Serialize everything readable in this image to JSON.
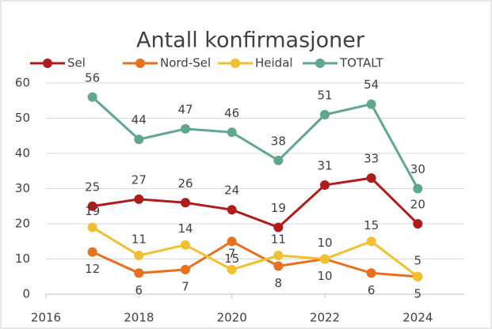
{
  "chart_data": {
    "type": "line",
    "title": "Antall konfirmasjoner",
    "x": [
      2017,
      2018,
      2019,
      2020,
      2021,
      2022,
      2023,
      2024
    ],
    "series": [
      {
        "name": "Sel",
        "color": "#b01c1c",
        "values": [
          25,
          27,
          26,
          24,
          19,
          31,
          33,
          20
        ]
      },
      {
        "name": "Nord-Sel",
        "color": "#e8701e",
        "values": [
          12,
          6,
          7,
          15,
          8,
          10,
          6,
          5
        ]
      },
      {
        "name": "Heidal",
        "color": "#f0c030",
        "values": [
          19,
          11,
          14,
          7,
          11,
          10,
          15,
          5
        ]
      },
      {
        "name": "TOTALT",
        "color": "#5fa88a",
        "values": [
          56,
          44,
          47,
          46,
          38,
          51,
          54,
          30
        ]
      }
    ],
    "xlim": [
      2016,
      2025
    ],
    "xticks": [
      2016,
      2018,
      2020,
      2022,
      2024
    ],
    "ylim": [
      0,
      60
    ],
    "yticks": [
      0,
      10,
      20,
      30,
      40,
      50,
      60
    ],
    "grid": true,
    "legend": "top"
  }
}
